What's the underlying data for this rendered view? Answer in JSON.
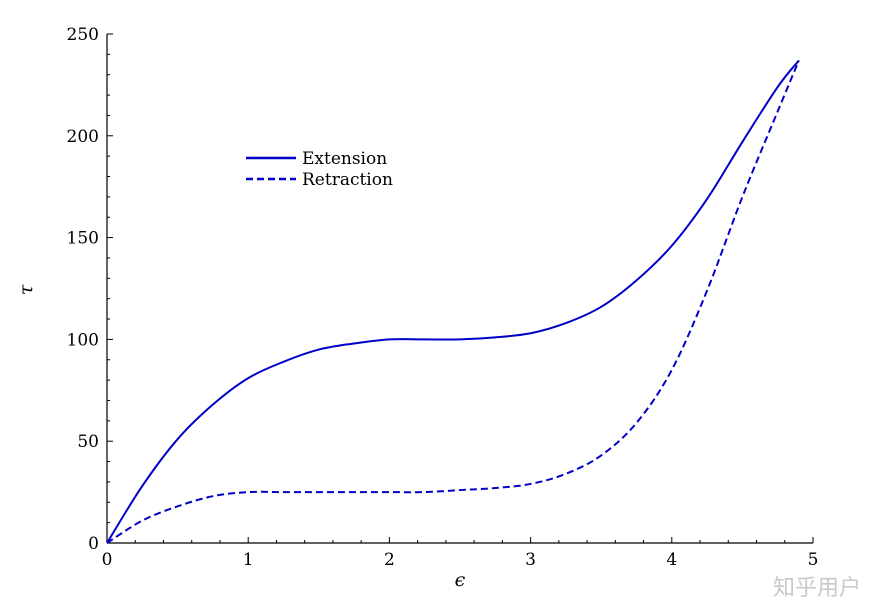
{
  "chart_data": {
    "type": "line",
    "xlabel": "ϵ",
    "ylabel": "τ",
    "xlim": [
      0,
      5
    ],
    "ylim": [
      0,
      250
    ],
    "xticks": [
      0,
      1,
      2,
      3,
      4,
      5
    ],
    "yticks": [
      0,
      50,
      100,
      150,
      200,
      250
    ],
    "grid": false,
    "legend_position": "upper-left",
    "series_color": "#0000c8",
    "series": [
      {
        "name": "Extension",
        "style": "solid",
        "x": [
          0,
          0.25,
          0.5,
          0.75,
          1.0,
          1.25,
          1.5,
          1.75,
          2.0,
          2.25,
          2.5,
          2.75,
          3.0,
          3.25,
          3.5,
          3.75,
          4.0,
          4.25,
          4.5,
          4.75,
          4.9
        ],
        "y": [
          0,
          28,
          51,
          68,
          81,
          89,
          95,
          98,
          100,
          100,
          100,
          101,
          103,
          108,
          116,
          129,
          146,
          169,
          197,
          224,
          237
        ]
      },
      {
        "name": "Retraction",
        "style": "dashed",
        "x": [
          0,
          0.25,
          0.5,
          0.75,
          1.0,
          1.25,
          1.5,
          1.75,
          2.0,
          2.25,
          2.5,
          2.75,
          3.0,
          3.25,
          3.5,
          3.75,
          4.0,
          4.25,
          4.5,
          4.75,
          4.9
        ],
        "y": [
          0,
          11,
          18,
          23,
          25,
          25,
          25,
          25,
          25,
          25,
          26,
          27,
          29,
          34,
          43,
          59,
          85,
          124,
          170,
          212,
          237
        ]
      }
    ]
  },
  "watermark": "知乎用户"
}
